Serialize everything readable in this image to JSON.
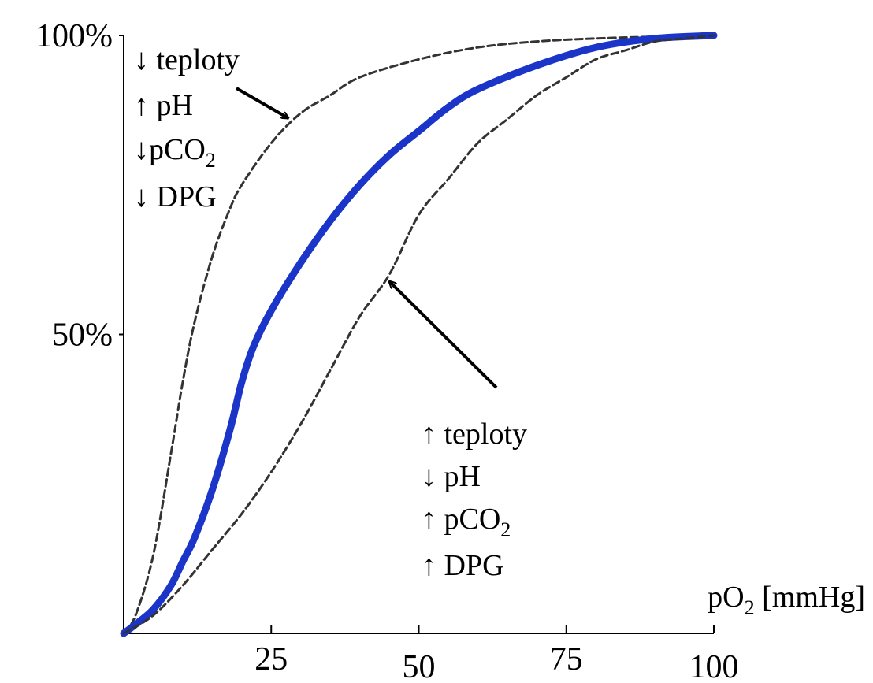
{
  "chart_data": {
    "type": "line",
    "title": "",
    "xlabel": "pO",
    "xlabel_sub": "2",
    "xlabel_unit": " [mmHg]",
    "ylabel": "",
    "xlim": [
      0,
      100
    ],
    "ylim": [
      0,
      100
    ],
    "x_ticks": [
      {
        "value": 25,
        "label": "25"
      },
      {
        "value": 50,
        "label": "50"
      },
      {
        "value": 75,
        "label": "75"
      },
      {
        "value": 100,
        "label": "100"
      }
    ],
    "y_ticks": [
      {
        "value": 50,
        "label": "50%"
      },
      {
        "value": 100,
        "label": "100%"
      }
    ],
    "grid": false,
    "series": [
      {
        "style": "dashed",
        "color": "#333333",
        "x": [
          0,
          2,
          5,
          8,
          10,
          12,
          15,
          18,
          20,
          25,
          30,
          35,
          40,
          50,
          60,
          70,
          80,
          90,
          100
        ],
        "y": [
          0,
          3,
          13,
          30,
          42,
          52,
          63,
          71,
          75,
          82,
          87,
          90,
          93,
          96,
          98,
          99,
          99.5,
          99.8,
          100
        ]
      },
      {
        "style": "solid",
        "color": "#1a35c8",
        "x": [
          0,
          2,
          5,
          8,
          10,
          12,
          15,
          18,
          20,
          22,
          25,
          30,
          35,
          40,
          45,
          50,
          55,
          60,
          70,
          80,
          90,
          100
        ],
        "y": [
          0,
          1.5,
          4,
          8,
          12,
          16,
          24,
          34,
          42,
          48,
          54,
          62,
          69,
          75,
          80,
          84,
          88,
          91,
          95,
          98,
          99.5,
          100
        ]
      },
      {
        "style": "dashed",
        "color": "#333333",
        "x": [
          0,
          5,
          10,
          15,
          20,
          25,
          30,
          35,
          40,
          45,
          50,
          55,
          60,
          65,
          70,
          75,
          80,
          85,
          90,
          95,
          100
        ],
        "y": [
          0,
          3,
          8,
          14,
          20,
          27,
          35,
          44,
          53,
          60,
          70,
          76,
          82,
          86,
          90,
          93,
          96,
          97.5,
          99,
          99.5,
          100
        ]
      }
    ],
    "annotations": {
      "left": [
        {
          "arrow": "↓",
          "text": " teploty",
          "sub": ""
        },
        {
          "arrow": "↑",
          "text": " pH",
          "sub": ""
        },
        {
          "arrow": "↓",
          "text": "pCO",
          "sub": "2"
        },
        {
          "arrow": "↓",
          "text": " DPG",
          "sub": ""
        }
      ],
      "right": [
        {
          "arrow": "↑",
          "text": " teploty",
          "sub": ""
        },
        {
          "arrow": "↓",
          "text": " pH",
          "sub": ""
        },
        {
          "arrow": "↑",
          "text": " pCO",
          "sub": "2"
        },
        {
          "arrow": "↑",
          "text": " DPG",
          "sub": ""
        }
      ]
    }
  }
}
